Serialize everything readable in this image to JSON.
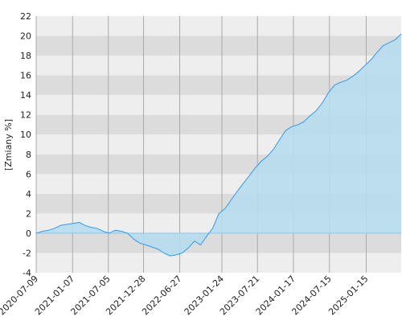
{
  "chart_data": {
    "type": "line",
    "y_label": "[Zmiany %]",
    "x": [
      "2020-07-09",
      "2020-08-09",
      "2020-09-09",
      "2020-10-09",
      "2020-11-09",
      "2020-12-09",
      "2021-01-09",
      "2021-02-09",
      "2021-03-09",
      "2021-04-09",
      "2021-05-09",
      "2021-06-09",
      "2021-07-09",
      "2021-08-09",
      "2021-09-09",
      "2021-10-09",
      "2021-11-09",
      "2021-12-09",
      "2022-01-09",
      "2022-02-09",
      "2022-03-09",
      "2022-04-09",
      "2022-05-09",
      "2022-06-09",
      "2022-07-09",
      "2022-08-09",
      "2022-09-09",
      "2022-10-09",
      "2022-11-09",
      "2022-12-09",
      "2023-01-09",
      "2023-02-09",
      "2023-03-09",
      "2023-04-09",
      "2023-05-09",
      "2023-06-09",
      "2023-07-09",
      "2023-08-09",
      "2023-09-09",
      "2023-10-09",
      "2023-11-09",
      "2023-12-09",
      "2024-01-09",
      "2024-02-09",
      "2024-03-09",
      "2024-04-09",
      "2024-05-09",
      "2024-06-09",
      "2024-07-09",
      "2024-08-09",
      "2024-09-09",
      "2024-10-09",
      "2024-11-09",
      "2024-12-09",
      "2025-01-09",
      "2025-02-09",
      "2025-03-09",
      "2025-04-09",
      "2025-05-09",
      "2025-06-09",
      "2025-07-09"
    ],
    "series": [
      {
        "color": "#3399ee",
        "fill": "#b7dcee",
        "values": [
          0,
          0.2,
          0.3,
          0.5,
          0.8,
          0.9,
          1.0,
          1.1,
          0.8,
          0.6,
          0.5,
          0.2,
          0.0,
          0.3,
          0.2,
          0.0,
          -0.6,
          -1.0,
          -1.2,
          -1.4,
          -1.6,
          -2.0,
          -2.3,
          -2.2,
          -2.0,
          -1.5,
          -0.8,
          -1.2,
          -0.3,
          0.5,
          2.0,
          2.5,
          3.3,
          4.2,
          5.0,
          5.8,
          6.6,
          7.3,
          7.8,
          8.5,
          9.5,
          10.4,
          10.8,
          11.0,
          11.3,
          11.9,
          12.4,
          13.2,
          14.2,
          15.0,
          15.3,
          15.5,
          15.9,
          16.4,
          17.0,
          17.6,
          18.3,
          19.0,
          19.3,
          19.6,
          20.2
        ]
      }
    ],
    "ylim": [
      -4,
      22
    ],
    "yticks": [
      -4,
      -2,
      0,
      2,
      4,
      6,
      8,
      10,
      12,
      14,
      16,
      18,
      20,
      22
    ],
    "xticks": [
      "2020-07-09",
      "2021-01-07",
      "2021-07-05",
      "2021-12-28",
      "2022-06-27",
      "2023-01-24",
      "2023-07-21",
      "2024-01-17",
      "2024-07-15",
      "2025-01-15"
    ],
    "grid": true
  }
}
